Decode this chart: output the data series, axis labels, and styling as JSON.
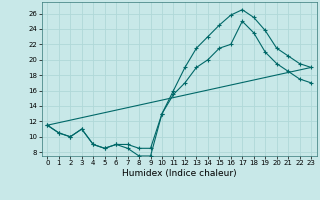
{
  "xlabel": "Humidex (Indice chaleur)",
  "background_color": "#c8e8e8",
  "grid_color": "#b0d8d8",
  "line_color": "#006868",
  "x_ticks": [
    0,
    1,
    2,
    3,
    4,
    5,
    6,
    7,
    8,
    9,
    10,
    11,
    12,
    13,
    14,
    15,
    16,
    17,
    18,
    19,
    20,
    21,
    22,
    23
  ],
  "y_ticks": [
    8,
    10,
    12,
    14,
    16,
    18,
    20,
    22,
    24,
    26
  ],
  "ylim": [
    7.5,
    27.5
  ],
  "xlim": [
    -0.5,
    23.5
  ],
  "series1_x": [
    0,
    1,
    2,
    3,
    4,
    5,
    6,
    7,
    8,
    9,
    10,
    11,
    12,
    13,
    14,
    15,
    16,
    17,
    18,
    19,
    20,
    21,
    22,
    23
  ],
  "series1_y": [
    11.5,
    10.5,
    10.0,
    11.0,
    9.0,
    8.5,
    9.0,
    8.5,
    7.5,
    7.5,
    13.0,
    16.0,
    19.0,
    21.5,
    23.0,
    24.5,
    25.8,
    26.5,
    25.5,
    23.8,
    21.5,
    20.5,
    19.5,
    19.0
  ],
  "series2_x": [
    0,
    1,
    2,
    3,
    4,
    5,
    6,
    7,
    8,
    9,
    10,
    11,
    12,
    13,
    14,
    15,
    16,
    17,
    18,
    19,
    20,
    21,
    22,
    23
  ],
  "series2_y": [
    11.5,
    10.5,
    10.0,
    11.0,
    9.0,
    8.5,
    9.0,
    9.0,
    8.5,
    8.5,
    13.0,
    15.5,
    17.0,
    19.0,
    20.0,
    21.5,
    22.0,
    25.0,
    23.5,
    21.0,
    19.5,
    18.5,
    17.5,
    17.0
  ],
  "series3_x": [
    0,
    23
  ],
  "series3_y": [
    11.5,
    19.0
  ],
  "xlabel_fontsize": 6.5,
  "tick_fontsize": 5.0
}
